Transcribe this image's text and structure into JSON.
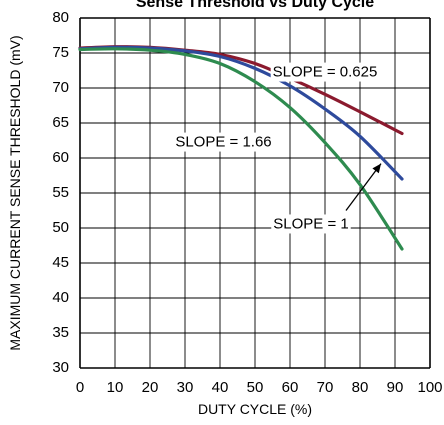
{
  "chart_data": {
    "type": "line",
    "title": "Sense Threshold vs Duty Cycle",
    "xlabel": "DUTY CYCLE (%)",
    "ylabel": "MAXIMUM CURRENT SENSE THRESHOLD (mV)",
    "xlim": [
      0,
      100
    ],
    "ylim": [
      30,
      80
    ],
    "xticks": [
      "0",
      "10",
      "20",
      "30",
      "40",
      "50",
      "60",
      "70",
      "80",
      "90",
      "100"
    ],
    "yticks": [
      "30",
      "35",
      "40",
      "45",
      "50",
      "55",
      "60",
      "65",
      "70",
      "75",
      "80"
    ],
    "grid": true,
    "series": [
      {
        "name": "SLOPE = 0.625",
        "color": "#8b1a2e",
        "x": [
          0,
          10,
          20,
          30,
          40,
          50,
          60,
          70,
          80,
          92
        ],
        "y": [
          75.7,
          75.9,
          75.8,
          75.4,
          74.8,
          73.5,
          71.4,
          69.1,
          66.6,
          63.5
        ]
      },
      {
        "name": "SLOPE = 1",
        "color": "#2e4a9c",
        "x": [
          0,
          10,
          20,
          30,
          40,
          50,
          60,
          70,
          80,
          92
        ],
        "y": [
          75.6,
          75.8,
          75.7,
          75.3,
          74.5,
          72.8,
          70.3,
          67.0,
          63.1,
          57.0
        ]
      },
      {
        "name": "SLOPE = 1.66",
        "color": "#2e8b4f",
        "x": [
          0,
          10,
          20,
          30,
          40,
          50,
          60,
          70,
          80,
          92
        ],
        "y": [
          75.5,
          75.6,
          75.4,
          74.8,
          73.5,
          70.9,
          67.2,
          62.2,
          56.2,
          47.0
        ]
      }
    ],
    "annotations": [
      {
        "text": "SLOPE = 0.625",
        "x": 70,
        "y": 72.2
      },
      {
        "text": "SLOPE = 1.66",
        "x": 41,
        "y": 62.2
      },
      {
        "text": "SLOPE = 1",
        "x": 66,
        "y": 50.5
      }
    ],
    "arrow": {
      "from": [
        76,
        52.5
      ],
      "to": [
        86,
        59.2
      ]
    }
  }
}
